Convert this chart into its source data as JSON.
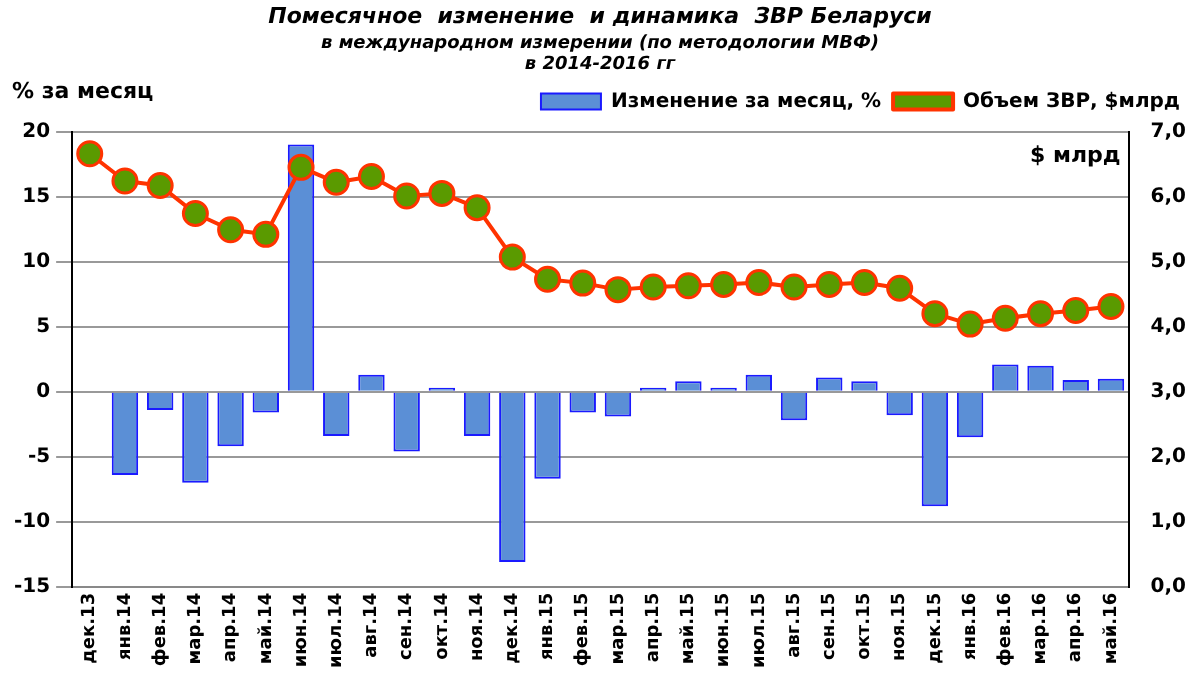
{
  "chart_data": {
    "type": "bar",
    "title": "Помесячное  изменение  и динамика  ЗВР Беларуси",
    "subtitle": "в международном измерении (по методологии МВФ)",
    "annotations": [
      "в 2014-2016 гг"
    ],
    "ylabel": "% за месяц",
    "y2label": "$ млрд",
    "categories": [
      "дек.13",
      "янв.14",
      "фев.14",
      "мар.14",
      "апр.14",
      "май.14",
      "июн.14",
      "июл.14",
      "авг.14",
      "сен.14",
      "окт.14",
      "ноя.14",
      "дек.14",
      "янв.15",
      "фев.15",
      "мар.15",
      "апр.15",
      "май.15",
      "июн.15",
      "июл.15",
      "авг.15",
      "сен.15",
      "окт.15",
      "ноя.15",
      "дек.15",
      "янв.16",
      "фев.16",
      "мар.16",
      "апр.16",
      "май.16"
    ],
    "series": [
      {
        "name": "Изменение за месяц, %",
        "color": "#5b8fd6",
        "values": [
          null,
          -6.4,
          -1.4,
          -7.0,
          -4.2,
          -1.6,
          19.0,
          -3.4,
          1.3,
          -4.6,
          0.3,
          -3.4,
          -13.1,
          -6.7,
          -1.6,
          -1.9,
          0.3,
          0.8,
          0.3,
          1.3,
          -2.2,
          1.1,
          0.8,
          -1.8,
          -8.8,
          -3.5,
          2.1,
          2.0,
          0.9,
          1.0
        ]
      },
      {
        "name": "Объем ЗВР, $млрд",
        "type": "line",
        "axis": "y2",
        "color": "#ff3300",
        "marker": "circle",
        "values": [
          6.66,
          6.24,
          6.17,
          5.74,
          5.49,
          5.42,
          6.45,
          6.22,
          6.31,
          6.01,
          6.05,
          5.83,
          5.07,
          4.73,
          4.67,
          4.57,
          4.61,
          4.63,
          4.65,
          4.68,
          4.61,
          4.65,
          4.68,
          4.59,
          4.2,
          4.04,
          4.13,
          4.2,
          4.25,
          4.31
        ]
      }
    ],
    "ylim": [
      -15,
      20
    ],
    "yticks": [
      -15,
      -10,
      -5,
      0,
      5,
      10,
      15,
      20
    ],
    "y2lim": [
      0,
      7
    ],
    "y2ticks": [
      {
        "value": 0,
        "label": "0,0"
      },
      {
        "value": 1,
        "label": "1,0"
      },
      {
        "value": 2,
        "label": "2,0"
      },
      {
        "value": 3,
        "label": "3,0"
      },
      {
        "value": 4,
        "label": "4,0"
      },
      {
        "value": 5,
        "label": "5,0"
      },
      {
        "value": 6,
        "label": "6,0"
      },
      {
        "value": 7,
        "label": "7,0"
      }
    ],
    "grid": "y",
    "legend": "top right"
  }
}
